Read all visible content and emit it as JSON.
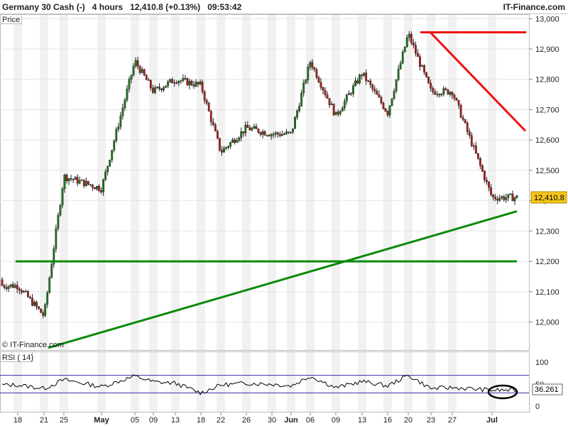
{
  "header": {
    "instrument": "Germany 30 Cash (-)",
    "timeframe": "4 hours",
    "last_price": "12,410.8",
    "change": "(+0.13%)",
    "time": "09:53:42",
    "brand": "IT-Finance.com"
  },
  "price_panel": {
    "label": "Price",
    "watermark": "© IT-Finance.com",
    "last_value_tag": "12,410.8"
  },
  "rsi_panel": {
    "label": "RSI ( 14)",
    "last_value_tag": "36.261"
  },
  "colors": {
    "up_candle": "#1f7a1f",
    "down_candle": "#b02020",
    "support_line": "#0a8a0a",
    "resistance_line": "#ee1111",
    "price_tag_bg": "#f5c518",
    "rsi_line": "#000000",
    "rsi_band": "#3333aa",
    "rsi_fill": "#e0b8b8"
  },
  "chart_data": [
    {
      "type": "candlestick",
      "x": [
        "Apr 18",
        "Apr 21",
        "Apr 25",
        "May",
        "May 05",
        "May 09",
        "May 13",
        "May 18",
        "May 22",
        "May 26",
        "May 30",
        "Jun",
        "Jun 06",
        "Jun 09",
        "Jun 13",
        "Jun 16",
        "Jun 20",
        "Jun 23",
        "Jun 27",
        "Jul"
      ],
      "x_tick_labels": [
        "18",
        "21",
        "25",
        "May",
        "05",
        "09",
        "13",
        "18",
        "22",
        "26",
        "30",
        "Jun",
        "06",
        "09",
        "13",
        "16",
        "20",
        "23",
        "27",
        "Jul"
      ],
      "close": [
        12120,
        12020,
        12480,
        12440,
        12860,
        12760,
        12800,
        12780,
        12560,
        12640,
        12620,
        12620,
        12860,
        12680,
        12820,
        12690,
        12950,
        12760,
        12760,
        12410.8
      ],
      "ylim": [
        11910,
        13010
      ],
      "y_ticks": [
        12000,
        12100,
        12200,
        12300,
        12400,
        12500,
        12600,
        12700,
        12800,
        12900,
        13000
      ],
      "y_tick_labels": [
        "12,000",
        "12,100",
        "12,200",
        "12,300",
        "12,400",
        "12,500",
        "12,600",
        "12,700",
        "12,800",
        "12,900",
        "13,000"
      ],
      "last_value": 12410.8,
      "annotations": [
        {
          "kind": "horizontal-support",
          "y": 12200,
          "x_from": "Apr 18",
          "x_to": "Jul",
          "color": "green"
        },
        {
          "kind": "rising-trendline",
          "from": [
            "Apr 21",
            11915
          ],
          "to": [
            "Jul",
            12365
          ],
          "color": "green"
        },
        {
          "kind": "horizontal-resistance",
          "y": 12955,
          "x_from": "Jun 18",
          "x_to": "Jul",
          "color": "red"
        },
        {
          "kind": "falling-trendline",
          "from": [
            "Jun 20",
            12955
          ],
          "to": [
            "Jul",
            12630
          ],
          "color": "red"
        }
      ]
    },
    {
      "type": "line",
      "name": "RSI ( 14)",
      "x": [
        "Apr 18",
        "Apr 21",
        "Apr 25",
        "May",
        "May 05",
        "May 09",
        "May 13",
        "May 18",
        "May 22",
        "May 26",
        "May 30",
        "Jun",
        "Jun 06",
        "Jun 09",
        "Jun 13",
        "Jun 16",
        "Jun 20",
        "Jun 23",
        "Jun 27",
        "Jul"
      ],
      "values": [
        48,
        40,
        60,
        44,
        68,
        55,
        52,
        30,
        48,
        52,
        50,
        46,
        68,
        42,
        56,
        46,
        70,
        40,
        42,
        36.261
      ],
      "ylim": [
        0,
        100
      ],
      "y_ticks": [
        0,
        50,
        100
      ],
      "bands": [
        30,
        70
      ],
      "last_value": 36.261,
      "annotations": [
        {
          "kind": "circle-highlight",
          "at": [
            "Jun 30",
            30
          ]
        }
      ]
    }
  ]
}
